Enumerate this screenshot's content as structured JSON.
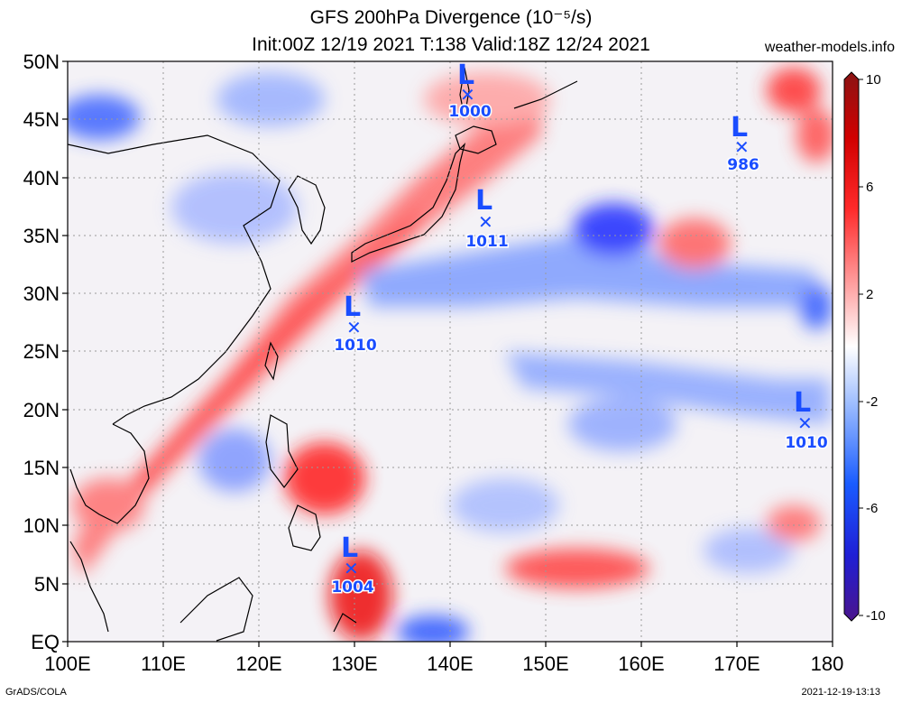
{
  "titles": {
    "line1": "GFS 200hPa Divergence (10⁻⁵/s)",
    "line2": "Init:00Z 12/19 2021 T:138 Valid:18Z 12/24 2021",
    "credit": "weather-models.info",
    "footer_left": "GrADS/COLA",
    "footer_right": "2021-12-19-13:13"
  },
  "axes": {
    "lat_labels": [
      "50N",
      "45N",
      "40N",
      "35N",
      "30N",
      "25N",
      "20N",
      "15N",
      "10N",
      "5N",
      "EQ"
    ],
    "lon_labels": [
      "100E",
      "110E",
      "120E",
      "130E",
      "140E",
      "150E",
      "160E",
      "170E",
      "180"
    ]
  },
  "colorbar": {
    "labels": [
      "10",
      "6",
      "2",
      "-2",
      "-6",
      "-10"
    ],
    "colors": [
      "#6a1b9a",
      "#1f1fd6",
      "#3c7bff",
      "#8fb3ff",
      "#ffffff",
      "#ff9a9a",
      "#ff2b2b",
      "#d10000",
      "#a01010"
    ]
  },
  "systems": [
    {
      "label": "L",
      "pressure": "1000"
    },
    {
      "label": "L",
      "pressure": "986"
    },
    {
      "label": "L",
      "pressure": "1011"
    },
    {
      "label": "L",
      "pressure": "1010"
    },
    {
      "label": "L",
      "pressure": "1010"
    },
    {
      "label": "L",
      "pressure": "1004"
    }
  ]
}
